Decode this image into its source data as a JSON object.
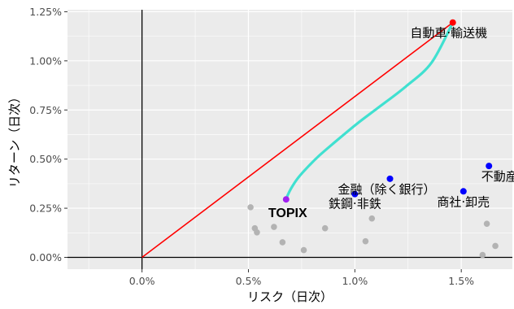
{
  "chart_data": {
    "type": "scatter",
    "xlabel": "リスク（日次）",
    "ylabel": "リターン（日次）",
    "xlim": [
      -0.0035,
      0.0174
    ],
    "ylim": [
      -0.0006,
      0.0126
    ],
    "x_ticks": [
      0,
      0.005,
      0.01,
      0.015
    ],
    "x_tick_labels": [
      "0.0%",
      "0.5%",
      "1.0%",
      "1.5%"
    ],
    "y_ticks": [
      0,
      0.0025,
      0.005,
      0.0075,
      0.01,
      0.0125
    ],
    "y_tick_labels": [
      "0.00%",
      "0.25%",
      "0.50%",
      "0.75%",
      "1.00%",
      "1.25%"
    ],
    "grid": true,
    "colors": {
      "panel": "#ebebeb",
      "grid": "#ffffff",
      "zero_axes": "#000000",
      "gray_points": "#b3b3b3",
      "labeled_points": "#0000ff",
      "highlight_point": "#ff0000",
      "topix_point": "#a020f0",
      "frontier": "#40e0d0",
      "capital_line": "#ff0000"
    },
    "capital_market_line": {
      "from": [
        0,
        0
      ],
      "to": [
        0.0146,
        0.01195
      ]
    },
    "efficient_frontier": [
      [
        0.00677,
        0.00295
      ],
      [
        0.00684,
        0.00315
      ],
      [
        0.007,
        0.0035
      ],
      [
        0.0073,
        0.004
      ],
      [
        0.0077,
        0.0045
      ],
      [
        0.0083,
        0.00515
      ],
      [
        0.0091,
        0.0059
      ],
      [
        0.0101,
        0.0068
      ],
      [
        0.0112,
        0.0077
      ],
      [
        0.0124,
        0.0087
      ],
      [
        0.0136,
        0.0099
      ],
      [
        0.0146,
        0.01195
      ]
    ],
    "gray_points": [
      [
        0.0051,
        0.00255
      ],
      [
        0.0053,
        0.00148
      ],
      [
        0.0054,
        0.00127
      ],
      [
        0.0062,
        0.00155
      ],
      [
        0.0066,
        0.00077
      ],
      [
        0.0076,
        0.00037
      ],
      [
        0.0086,
        0.00148
      ],
      [
        0.0105,
        0.00082
      ],
      [
        0.0108,
        0.00198
      ],
      [
        0.016,
        0.00012
      ],
      [
        0.0162,
        0.00171
      ],
      [
        0.0166,
        0.00058
      ]
    ],
    "labeled_points": [
      {
        "label": "自動車·輸送機",
        "x": 0.0146,
        "y": 0.01195,
        "color": "#ff0000",
        "dx": -5,
        "dy": 18,
        "anchor": "middle"
      },
      {
        "label": "金融（除く銀行）",
        "x": 0.01165,
        "y": 0.004,
        "color": "#0000ff",
        "dx": -4,
        "dy": 18,
        "anchor": "middle"
      },
      {
        "label": "鉄鋼·非鉄",
        "x": 0.01,
        "y": 0.00322,
        "color": "#0000ff",
        "dx": 0,
        "dy": 17,
        "anchor": "middle"
      },
      {
        "label": "商社·卸売",
        "x": 0.0151,
        "y": 0.00336,
        "color": "#0000ff",
        "dx": 0,
        "dy": 18,
        "anchor": "middle"
      },
      {
        "label": "不動産",
        "x": 0.0163,
        "y": 0.00465,
        "color": "#0000ff",
        "dx": 13,
        "dy": 18,
        "anchor": "middle"
      },
      {
        "label": "TOPIX",
        "x": 0.00677,
        "y": 0.00295,
        "color": "#a020f0",
        "dx": 2,
        "dy": 22,
        "anchor": "middle",
        "bold": true
      }
    ]
  }
}
